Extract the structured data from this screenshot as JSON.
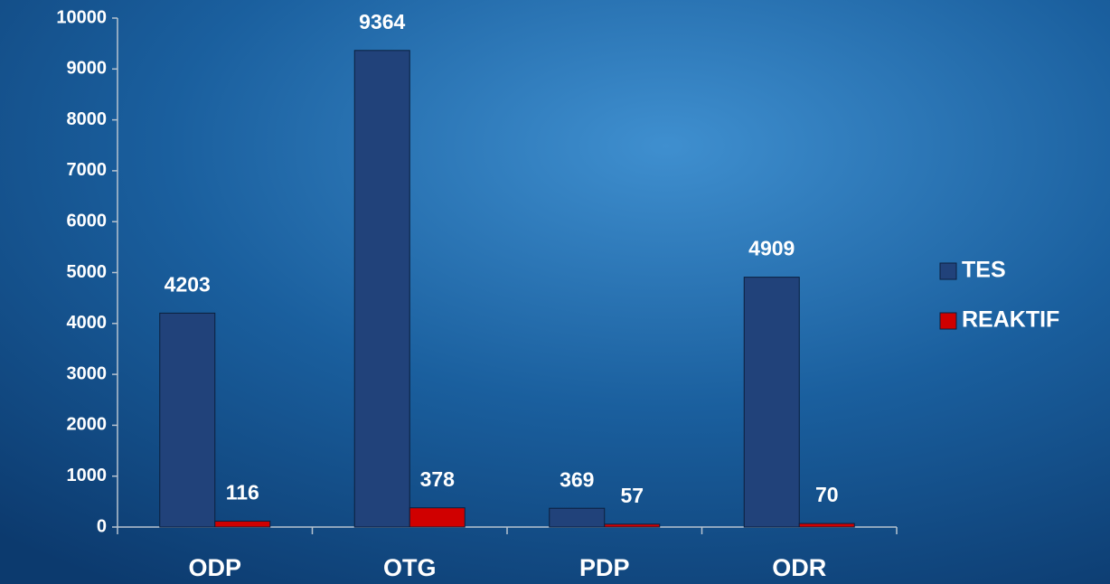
{
  "chart_data": {
    "type": "bar",
    "categories": [
      "ODP",
      "OTG",
      "PDP",
      "ODR"
    ],
    "series": [
      {
        "name": "TES",
        "color": "#21427a",
        "values": [
          4203,
          9364,
          369,
          4909
        ]
      },
      {
        "name": "REAKTIF",
        "color": "#d00000",
        "values": [
          116,
          378,
          57,
          70
        ]
      }
    ],
    "ylim": [
      0,
      10000
    ],
    "yticks": [
      0,
      1000,
      2000,
      3000,
      4000,
      5000,
      6000,
      7000,
      8000,
      9000,
      10000
    ],
    "grid": false,
    "legend": "right"
  }
}
